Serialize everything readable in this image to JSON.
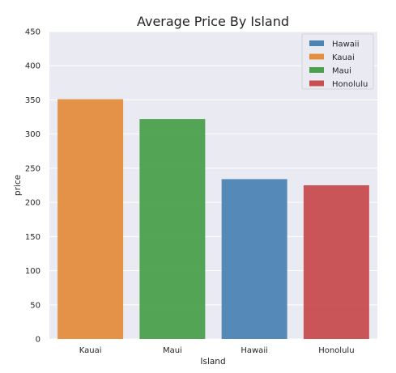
{
  "chart_data": {
    "type": "bar",
    "title": "Average Price By Island",
    "xlabel": "Island",
    "ylabel": "price",
    "categories": [
      "Kauai",
      "Maui",
      "Hawaii",
      "Honolulu"
    ],
    "values": [
      351,
      322,
      234,
      225
    ],
    "ylim": [
      0,
      450
    ],
    "yticks": [
      0,
      50,
      100,
      150,
      200,
      250,
      300,
      350,
      400,
      450
    ],
    "grid": true,
    "legend_position": "top-right",
    "legend": [
      {
        "name": "Hawaii",
        "color": "#4c84b4"
      },
      {
        "name": "Kauai",
        "color": "#e38d3d"
      },
      {
        "name": "Maui",
        "color": "#4ca04c"
      },
      {
        "name": "Honolulu",
        "color": "#c84d4f"
      }
    ],
    "bar_colors": {
      "Kauai": "#e38d3d",
      "Maui": "#4ca04c",
      "Hawaii": "#4c84b4",
      "Honolulu": "#c84d4f"
    },
    "background_color": "#eaeaf2"
  }
}
